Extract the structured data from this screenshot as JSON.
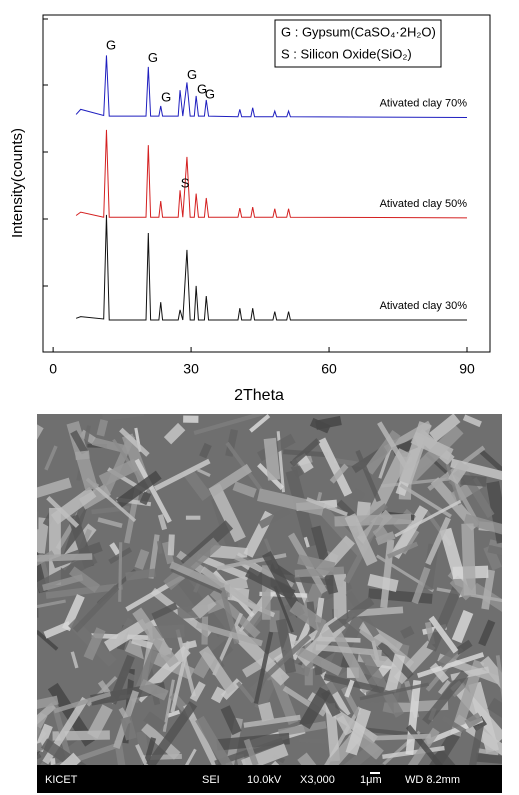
{
  "chart_data": {
    "type": "line",
    "xlabel": "2Theta",
    "ylabel": "Intensity(counts)",
    "x": [
      5,
      6,
      11,
      11.6,
      12.2,
      20.2,
      20.7,
      21.2,
      23,
      23.4,
      23.8,
      27.2,
      27.6,
      28.2,
      29.1,
      29.8,
      30.7,
      31.1,
      31.6,
      32.9,
      33.3,
      33.8,
      40.2,
      40.6,
      41,
      43,
      43.4,
      43.8,
      47.8,
      48.2,
      48.6,
      50.8,
      51.2,
      51.6,
      90
    ],
    "series": [
      {
        "name": "Ativated clay 70%",
        "color": "#1f1fbf",
        "values": [
          70.5,
          72,
          70.2,
          88,
          70,
          70,
          84.6,
          70,
          70,
          73,
          70,
          70,
          77.7,
          70,
          80,
          70,
          70,
          76,
          70,
          70,
          74.8,
          70,
          69.8,
          72,
          69.8,
          69.8,
          72.5,
          69.8,
          69.8,
          71.5,
          69.8,
          69.8,
          71.5,
          69.8,
          69.6
        ]
      },
      {
        "name": "Ativated clay 50%",
        "color": "#d42020",
        "values": [
          40.5,
          41.5,
          40,
          65.9,
          40,
          40,
          61.4,
          40,
          40,
          44.8,
          40,
          40,
          48,
          40,
          57.9,
          40,
          40,
          47,
          40,
          40,
          45.7,
          40,
          40,
          42.7,
          40,
          40,
          43,
          40,
          40,
          42.5,
          40,
          40,
          42.5,
          40,
          39.8
        ]
      },
      {
        "name": "Ativated clay 30%",
        "color": "#111111",
        "values": [
          10,
          10.5,
          9.8,
          40.7,
          9.5,
          9.5,
          35.3,
          9.5,
          9.5,
          14.8,
          9.5,
          9.5,
          12.5,
          9.5,
          30.3,
          9.5,
          9.5,
          19.6,
          9.5,
          9.5,
          16.6,
          9.5,
          9.5,
          13,
          9.5,
          9.5,
          13,
          9.5,
          9.5,
          12,
          9.5,
          9.5,
          12,
          9.5,
          9.5
        ]
      }
    ],
    "xlim": [
      -2.2,
      95
    ],
    "xticks": [
      0,
      30,
      60,
      90
    ],
    "ylim": [
      0,
      100
    ],
    "legend_box": [
      "G : Gypsum(CaSO₄·2H₂O)",
      "S : Silicon Oxide(SiO₂)"
    ],
    "annotations": [
      {
        "text": "G",
        "x": 12.6,
        "y": 90.8
      },
      {
        "text": "G",
        "x": 21.7,
        "y": 87
      },
      {
        "text": "G",
        "x": 24.6,
        "y": 75.4
      },
      {
        "text": "G",
        "x": 30.2,
        "y": 82
      },
      {
        "text": "G",
        "x": 32.4,
        "y": 77.7
      },
      {
        "text": "G",
        "x": 34.1,
        "y": 76.3
      },
      {
        "text": "S",
        "x": 28.7,
        "y": 49.8
      }
    ]
  },
  "image": {
    "info_bar": [
      "KICET",
      "SEI",
      "10.0kV",
      "X3,000",
      "1μm",
      "WD 8.2mm"
    ]
  }
}
